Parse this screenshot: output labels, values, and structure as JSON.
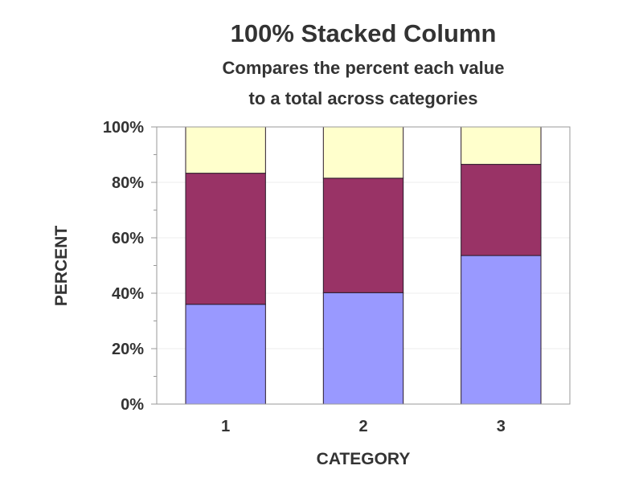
{
  "chart_data": {
    "type": "bar",
    "stacked": true,
    "normalized": true,
    "title": "100% Stacked Column",
    "subtitle": [
      "Compares the percent each value",
      "to a total across categories"
    ],
    "xlabel": "CATEGORY",
    "ylabel": "PERCENT",
    "ylim": [
      0,
      100
    ],
    "yticks": [
      "0%",
      "20%",
      "40%",
      "60%",
      "80%",
      "100%"
    ],
    "categories": [
      "1",
      "2",
      "3"
    ],
    "grid": true,
    "legend": "none",
    "series": [
      {
        "values": [
          36.0,
          40.2,
          53.6
        ],
        "color": "#9999ff"
      },
      {
        "values": [
          47.3,
          41.3,
          32.9
        ],
        "color": "#993366"
      },
      {
        "values": [
          16.7,
          18.5,
          13.5
        ],
        "color": "#ffffcc"
      }
    ]
  }
}
